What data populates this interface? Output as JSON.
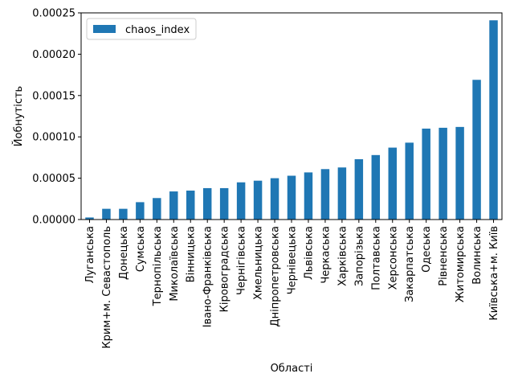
{
  "chart_data": {
    "type": "bar",
    "categories": [
      "Луганська",
      "Крим+м. Севастополь",
      "Донецька",
      "Сумська",
      "Тернопільська",
      "Миколаївська",
      "Вінницька",
      "Івано-Франківська",
      "Кіровоградська",
      "Чернігівська",
      "Хмельницька",
      "Дніпропетровська",
      "Чернівецька",
      "Львівська",
      "Черкаська",
      "Харківська",
      "Запорізька",
      "Полтавська",
      "Херсонська",
      "Закарпатська",
      "Одеська",
      "Рівненська",
      "Житомирська",
      "Волинська",
      "Київська+м. Київ"
    ],
    "series": [
      {
        "name": "chaos_index",
        "color": "#1f77b4",
        "values": [
          2.5e-06,
          1.3e-05,
          1.3e-05,
          2.1e-05,
          2.6e-05,
          3.4e-05,
          3.5e-05,
          3.8e-05,
          3.8e-05,
          4.5e-05,
          4.7e-05,
          5e-05,
          5.3e-05,
          5.7e-05,
          6.1e-05,
          6.3e-05,
          7.3e-05,
          7.8e-05,
          8.7e-05,
          9.3e-05,
          0.00011,
          0.000111,
          0.000112,
          0.000169,
          0.000241
        ]
      }
    ],
    "xlabel": "Області",
    "ylabel": "Йобнутість",
    "ylim": [
      0,
      0.00025
    ],
    "yticks": [
      {
        "value": 0,
        "label": "0.00000"
      },
      {
        "value": 5e-05,
        "label": "0.00005"
      },
      {
        "value": 0.0001,
        "label": "0.00010"
      },
      {
        "value": 0.00015,
        "label": "0.00015"
      },
      {
        "value": 0.0002,
        "label": "0.00020"
      },
      {
        "value": 0.00025,
        "label": "0.00025"
      }
    ],
    "grid": false,
    "legend_position": "top-left"
  }
}
